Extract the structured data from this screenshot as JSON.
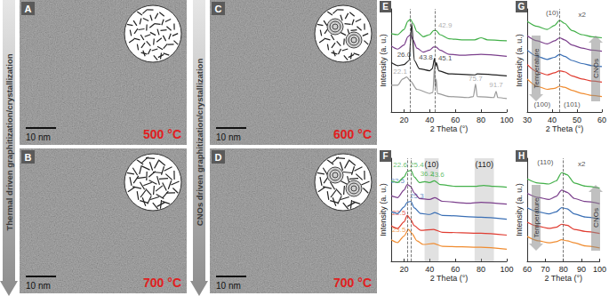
{
  "columns": [
    {
      "label": "Thermal driven graphitization/crystallization",
      "panels": [
        {
          "label": "A",
          "temperature": "500 °C",
          "scale_bar": "10 nm"
        },
        {
          "label": "B",
          "temperature": "700 °C",
          "scale_bar": "10 nm"
        }
      ]
    },
    {
      "label": "CNOs driven graphitization/crystallization",
      "panels": [
        {
          "label": "C",
          "temperature": "600 °C",
          "scale_bar": "10 nm"
        },
        {
          "label": "D",
          "temperature": "700 °C",
          "scale_bar": "10 nm"
        }
      ]
    }
  ],
  "chart_data": [
    {
      "panel": "E",
      "type": "line",
      "x_label": "2 Theta (°)",
      "y_label": "Intensity (a. u.)",
      "xlim": [
        10,
        100
      ],
      "xticks": [
        20,
        40,
        60,
        80,
        100
      ],
      "ylim": [
        0,
        10
      ],
      "tick_labels": "x",
      "grid": false,
      "series": [
        {
          "color": "#43b04a",
          "x": [
            10,
            15,
            20,
            23,
            25,
            27,
            30,
            35,
            40,
            43,
            45,
            48,
            55,
            65,
            75,
            80,
            85,
            100
          ],
          "values": [
            7.6,
            7.5,
            8.0,
            8.8,
            9.0,
            8.6,
            7.8,
            7.3,
            7.5,
            7.9,
            7.9,
            7.5,
            7.1,
            7.0,
            7.0,
            7.2,
            7.0,
            6.9
          ]
        },
        {
          "color": "#7b3f8c",
          "x": [
            10,
            15,
            20,
            23,
            25,
            27,
            30,
            35,
            40,
            43,
            45,
            48,
            55,
            65,
            80,
            100
          ],
          "values": [
            6.4,
            6.1,
            6.5,
            7.3,
            7.5,
            7.0,
            6.2,
            5.8,
            6.0,
            6.3,
            6.3,
            6.0,
            5.6,
            5.5,
            5.6,
            5.4
          ]
        },
        {
          "color": "#222222",
          "x": [
            10,
            15,
            20,
            24,
            26,
            28,
            32,
            40,
            42,
            43.8,
            44.5,
            45.1,
            47,
            55,
            75,
            77,
            100
          ],
          "values": [
            4.8,
            4.5,
            4.6,
            5.0,
            8.6,
            5.0,
            4.2,
            4.0,
            4.2,
            5.2,
            4.4,
            4.8,
            4.0,
            3.7,
            3.6,
            3.7,
            3.5
          ]
        },
        {
          "color": "#9a9a9a",
          "x": [
            10,
            15,
            19,
            22.1,
            25,
            30,
            40,
            42.5,
            43.8,
            44.3,
            45.1,
            46,
            55,
            70,
            74,
            75.7,
            77,
            90,
            91.7,
            93,
            100
          ],
          "values": [
            2.6,
            2.6,
            3.2,
            3.4,
            3.0,
            2.2,
            1.8,
            1.9,
            4.6,
            2.3,
            3.2,
            1.8,
            1.5,
            1.4,
            1.5,
            2.7,
            1.5,
            1.4,
            2.0,
            1.4,
            1.3
          ]
        }
      ],
      "annotations": [
        {
          "text": "26.0",
          "x": 20,
          "y": 5.6,
          "color": "#222222"
        },
        {
          "text": "22.1",
          "x": 17,
          "y": 3.9,
          "color": "#9a9a9a"
        },
        {
          "text": "43.8",
          "x": 37,
          "y": 5.3,
          "color": "#222222"
        },
        {
          "text": "45.1",
          "x": 52,
          "y": 5.2,
          "color": "#222222"
        },
        {
          "text": "42.9",
          "x": 52,
          "y": 8.4,
          "color": "#9a9a9a"
        },
        {
          "text": "75.7",
          "x": 75.7,
          "y": 3.2,
          "color": "#9a9a9a"
        },
        {
          "text": "91.7",
          "x": 91.7,
          "y": 2.6,
          "color": "#9a9a9a"
        }
      ],
      "vlines": [
        25,
        44
      ]
    },
    {
      "panel": "F",
      "type": "line",
      "x_label": "2 Theta (°)",
      "y_label": "Intensity (a. u.)",
      "xlim": [
        10,
        100
      ],
      "xticks": [
        20,
        40,
        60,
        80,
        100
      ],
      "ylim": [
        0,
        11
      ],
      "tick_labels": "x",
      "grid": false,
      "series": [
        {
          "color": "#43b04a",
          "x": [
            10,
            15,
            20,
            22.6,
            25.4,
            28,
            32,
            36.2,
            40,
            43.6,
            48,
            60,
            75,
            82,
            90,
            100
          ],
          "values": [
            8.6,
            8.4,
            9.0,
            9.6,
            9.7,
            9.0,
            8.4,
            8.5,
            8.4,
            8.6,
            8.2,
            8.0,
            8.0,
            8.1,
            8.0,
            7.9
          ]
        },
        {
          "color": "#7b3f8c",
          "x": [
            10,
            15,
            20,
            22.5,
            25,
            28,
            32,
            40,
            44,
            50,
            70,
            80,
            100
          ],
          "values": [
            7.0,
            6.8,
            7.6,
            8.2,
            8.0,
            7.3,
            6.7,
            6.6,
            6.8,
            6.4,
            6.2,
            6.3,
            6.1
          ]
        },
        {
          "color": "#3a6fb5",
          "x": [
            10,
            15,
            20,
            22.5,
            25.3,
            28,
            33,
            40,
            44,
            50,
            80,
            100
          ],
          "values": [
            5.3,
            5.1,
            5.8,
            6.3,
            6.4,
            5.7,
            5.1,
            5.0,
            5.2,
            4.9,
            4.7,
            4.5
          ]
        },
        {
          "color": "#e03c31",
          "x": [
            10,
            15,
            20,
            22.5,
            25,
            28,
            33,
            43,
            50,
            80,
            100
          ],
          "values": [
            3.8,
            3.5,
            4.2,
            4.9,
            4.5,
            3.8,
            3.3,
            3.4,
            3.1,
            3.0,
            2.8
          ]
        },
        {
          "color": "#f08c30",
          "x": [
            10,
            15,
            20,
            23.5,
            26,
            30,
            35,
            43,
            50,
            80,
            100
          ],
          "values": [
            2.3,
            2.0,
            2.7,
            3.4,
            3.0,
            2.2,
            1.8,
            1.9,
            1.6,
            1.5,
            1.3
          ]
        }
      ],
      "annotations": [
        {
          "text": "22.6",
          "x": 17,
          "y": 10.3,
          "color": "#43b04a"
        },
        {
          "text": "25.4",
          "x": 30,
          "y": 10.3,
          "color": "#43b04a"
        },
        {
          "text": "22.5",
          "x": 15,
          "y": 8.6,
          "color": "#3a6fb5"
        },
        {
          "text": "25.3",
          "x": 30,
          "y": 7.0,
          "color": "#3a6fb5"
        },
        {
          "text": "36.2",
          "x": 38,
          "y": 9.3,
          "color": "#43b04a"
        },
        {
          "text": "43.6",
          "x": 46,
          "y": 9.2,
          "color": "#43b04a"
        },
        {
          "text": "22.5",
          "x": 16,
          "y": 5.2,
          "color": "#e03c31"
        },
        {
          "text": "23.5",
          "x": 16,
          "y": 3.4,
          "color": "#f08c30"
        }
      ],
      "vlines": [
        22.6,
        25.4
      ],
      "bands": [
        {
          "label": "(10)",
          "range": [
            36,
            47
          ]
        },
        {
          "label": "(110)",
          "range": [
            75,
            90
          ]
        }
      ]
    },
    {
      "panel": "G",
      "type": "line",
      "x_label": "2 Theta (°)",
      "y_label": "Intensity (a. u.)",
      "xlim": [
        30,
        60
      ],
      "xticks": [
        30,
        40,
        50,
        60
      ],
      "ylim": [
        0,
        10
      ],
      "tick_labels": "x",
      "grid": false,
      "series": [
        {
          "color": "#43b04a",
          "x": [
            30,
            34,
            38,
            41,
            43,
            45,
            48,
            52,
            56,
            60
          ],
          "values": [
            8.8,
            8.3,
            8.0,
            8.4,
            8.9,
            8.6,
            7.9,
            7.5,
            7.3,
            7.2
          ]
        },
        {
          "color": "#7b3f8c",
          "x": [
            30,
            34,
            38,
            41,
            43,
            45,
            48,
            52,
            56,
            60
          ],
          "values": [
            7.4,
            6.9,
            6.6,
            6.9,
            7.2,
            7.0,
            6.5,
            6.2,
            6.0,
            5.9
          ]
        },
        {
          "color": "#3a6fb5",
          "x": [
            30,
            34,
            38,
            41,
            43,
            45,
            48,
            52,
            56,
            60
          ],
          "values": [
            6.0,
            5.4,
            5.1,
            5.3,
            5.6,
            5.4,
            5.0,
            4.7,
            4.5,
            4.4
          ]
        },
        {
          "color": "#e03c31",
          "x": [
            30,
            34,
            38,
            41,
            43,
            45,
            48,
            52,
            56,
            60
          ],
          "values": [
            4.6,
            3.9,
            3.6,
            3.8,
            4.0,
            3.9,
            3.5,
            3.2,
            3.0,
            2.9
          ]
        },
        {
          "color": "#f08c30",
          "x": [
            30,
            34,
            38,
            41,
            43,
            45,
            48,
            52,
            56,
            60
          ],
          "values": [
            3.2,
            2.5,
            2.2,
            2.3,
            2.5,
            2.4,
            2.1,
            1.8,
            1.6,
            1.5
          ]
        }
      ],
      "annotations": [
        {
          "text": "(10)",
          "x": 40,
          "y": 9.6,
          "color": "#222222"
        },
        {
          "text": "x2",
          "x": 52,
          "y": 9.4,
          "color": "#222222"
        },
        {
          "text": "(100)",
          "x": 36,
          "y": 0.7,
          "color": "#222222"
        },
        {
          "text": "(101)",
          "x": 48,
          "y": 0.7,
          "color": "#222222"
        }
      ],
      "vlines": [
        43
      ],
      "arrow_labels": [
        "Temperature",
        "CNOs"
      ]
    },
    {
      "panel": "H",
      "type": "line",
      "x_label": "2 Theta (°)",
      "y_label": "Intensity (a. u.)",
      "xlim": [
        60,
        100
      ],
      "xticks": [
        60,
        70,
        80,
        90,
        100
      ],
      "ylim": [
        0,
        10
      ],
      "tick_labels": "x",
      "grid": false,
      "series": [
        {
          "color": "#43b04a",
          "x": [
            60,
            66,
            72,
            76,
            79,
            82,
            86,
            92,
            100
          ],
          "values": [
            8.0,
            7.6,
            7.5,
            7.8,
            8.6,
            8.4,
            7.6,
            7.3,
            7.1
          ]
        },
        {
          "color": "#7b3f8c",
          "x": [
            60,
            66,
            72,
            76,
            79,
            82,
            86,
            92,
            100
          ],
          "values": [
            6.6,
            6.2,
            6.0,
            6.3,
            6.9,
            6.7,
            6.1,
            5.8,
            5.6
          ]
        },
        {
          "color": "#3a6fb5",
          "x": [
            60,
            66,
            72,
            76,
            79,
            82,
            86,
            92,
            100
          ],
          "values": [
            5.2,
            4.8,
            4.6,
            4.8,
            5.2,
            5.1,
            4.6,
            4.3,
            4.1
          ]
        },
        {
          "color": "#e03c31",
          "x": [
            60,
            66,
            72,
            76,
            79,
            82,
            86,
            92,
            100
          ],
          "values": [
            3.8,
            3.4,
            3.2,
            3.3,
            3.6,
            3.5,
            3.1,
            2.9,
            2.7
          ]
        },
        {
          "color": "#f08c30",
          "x": [
            60,
            66,
            72,
            76,
            79,
            82,
            86,
            92,
            100
          ],
          "values": [
            2.4,
            2.0,
            1.8,
            1.9,
            2.1,
            2.0,
            1.8,
            1.5,
            1.3
          ]
        }
      ],
      "annotations": [
        {
          "text": "(110)",
          "x": 70,
          "y": 9.6,
          "color": "#222222"
        },
        {
          "text": "x2",
          "x": 90,
          "y": 9.4,
          "color": "#222222"
        }
      ],
      "vlines": [
        80
      ],
      "arrow_labels": [
        "Temperature",
        "CNOs"
      ]
    }
  ]
}
